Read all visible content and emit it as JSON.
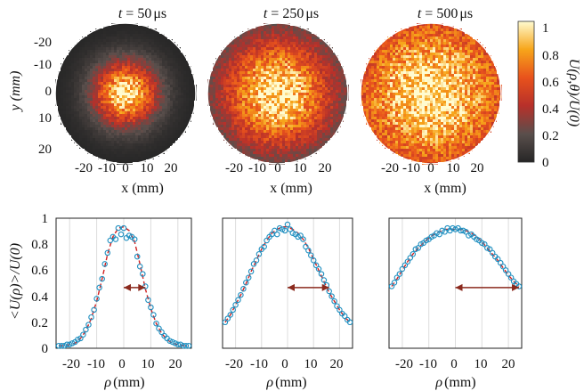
{
  "chart_data": [
    {
      "type": "heatmap",
      "title_prefix": "t",
      "title_value": "= 50",
      "title_unit": "μs",
      "xlabel": "x (mm)",
      "ylabel": "y (mm)",
      "xticks": [
        "-20",
        "-10",
        "0",
        "10",
        "20"
      ],
      "yticks": [
        "-20",
        "-10",
        "0",
        "10",
        "20"
      ],
      "xlim": [
        -25,
        25
      ],
      "ylim": [
        -25,
        25
      ],
      "aperture_radius_mm": 25,
      "beam_width_mm": 8,
      "colormap": "hot"
    },
    {
      "type": "heatmap",
      "title_prefix": "t",
      "title_value": "= 250",
      "title_unit": "μs",
      "xlabel": "x (mm)",
      "xticks": [
        "-20",
        "-10",
        "0",
        "10",
        "20"
      ],
      "xlim": [
        -25,
        25
      ],
      "ylim": [
        -25,
        25
      ],
      "aperture_radius_mm": 25,
      "beam_width_mm": 15,
      "colormap": "hot"
    },
    {
      "type": "heatmap",
      "title_prefix": "t",
      "title_value": "= 500",
      "title_unit": "μs",
      "xlabel": "x (mm)",
      "xticks": [
        "-20",
        "-10",
        "0",
        "10",
        "20"
      ],
      "xlim": [
        -25,
        25
      ],
      "ylim": [
        -25,
        25
      ],
      "aperture_radius_mm": 25,
      "beam_width_mm": 24,
      "colormap": "hot",
      "colorbar": {
        "label": "U(ρ,θ)/U(0)",
        "range": [
          0,
          1.05
        ],
        "ticks": [
          "0",
          "0.2",
          "0.4",
          "0.6",
          "0.8",
          "1"
        ]
      }
    },
    {
      "type": "scatter",
      "xlabel_symbol": "ρ",
      "xlabel_unit": "(mm)",
      "ylabel": "<U(ρ)>/U(0)",
      "xticks": [
        "-20",
        "-10",
        "0",
        "10",
        "20"
      ],
      "yticks": [
        "0",
        "0.2",
        "0.4",
        "0.6",
        "0.8",
        "1"
      ],
      "xlim": [
        -25,
        25
      ],
      "ylim": [
        0,
        1.05
      ],
      "grid": "vertical",
      "series": [
        {
          "kind": "markers",
          "x": [
            -24,
            -23,
            -22,
            -21,
            -20,
            -19,
            -18,
            -17,
            -16,
            -15,
            -14,
            -13,
            -12,
            -11,
            -10,
            -9,
            -8,
            -7,
            -6,
            -5,
            -4,
            -3,
            -2,
            -1,
            0,
            1,
            2,
            3,
            4,
            5,
            6,
            7,
            8,
            9,
            10,
            11,
            12,
            13,
            14,
            15,
            16,
            17,
            18,
            19,
            20,
            21,
            22,
            23,
            24
          ],
          "y": [
            0.02,
            0.02,
            0.02,
            0.03,
            0.03,
            0.04,
            0.05,
            0.07,
            0.08,
            0.11,
            0.15,
            0.19,
            0.25,
            0.31,
            0.4,
            0.49,
            0.56,
            0.68,
            0.77,
            0.87,
            0.9,
            0.88,
            0.97,
            0.92,
            0.97,
            0.89,
            0.91,
            0.9,
            0.88,
            0.74,
            0.66,
            0.6,
            0.5,
            0.39,
            0.33,
            0.27,
            0.2,
            0.16,
            0.13,
            0.1,
            0.08,
            0.06,
            0.05,
            0.04,
            0.03,
            0.03,
            0.02,
            0.02,
            0.02
          ]
        },
        {
          "kind": "fit",
          "x": [
            -24,
            -22,
            -20,
            -18,
            -16,
            -14,
            -12,
            -10,
            -8,
            -6,
            -4,
            -2,
            0,
            2,
            4,
            6,
            8,
            10,
            12,
            14,
            16,
            18,
            20,
            22,
            24
          ],
          "y": [
            0.02,
            0.02,
            0.03,
            0.04,
            0.08,
            0.14,
            0.24,
            0.38,
            0.56,
            0.76,
            0.9,
            0.97,
            0.98,
            0.95,
            0.86,
            0.68,
            0.48,
            0.32,
            0.2,
            0.12,
            0.07,
            0.04,
            0.03,
            0.02,
            0.02
          ]
        }
      ],
      "arrow": {
        "from": [
          0,
          0.49
        ],
        "to": [
          8,
          0.49
        ]
      }
    },
    {
      "type": "scatter",
      "xlabel_symbol": "ρ",
      "xlabel_unit": "(mm)",
      "xticks": [
        "-20",
        "-10",
        "0",
        "10",
        "20"
      ],
      "xlim": [
        -25,
        25
      ],
      "ylim": [
        0,
        1.05
      ],
      "grid": "vertical",
      "series": [
        {
          "kind": "markers",
          "x": [
            -24,
            -23,
            -22,
            -21,
            -20,
            -19,
            -18,
            -17,
            -16,
            -15,
            -14,
            -13,
            -12,
            -11,
            -10,
            -9,
            -8,
            -7,
            -6,
            -5,
            -4,
            -3,
            -2,
            -1,
            0,
            1,
            2,
            3,
            4,
            5,
            6,
            7,
            8,
            9,
            10,
            11,
            12,
            13,
            14,
            15,
            16,
            17,
            18,
            19,
            20,
            21,
            22,
            23,
            24
          ],
          "y": [
            0.21,
            0.24,
            0.27,
            0.31,
            0.35,
            0.39,
            0.43,
            0.48,
            0.53,
            0.57,
            0.62,
            0.68,
            0.71,
            0.76,
            0.8,
            0.82,
            0.87,
            0.9,
            0.92,
            0.95,
            0.92,
            0.97,
            0.96,
            0.95,
            1.0,
            0.96,
            0.93,
            0.92,
            0.9,
            0.91,
            0.88,
            0.82,
            0.79,
            0.75,
            0.71,
            0.67,
            0.64,
            0.6,
            0.55,
            0.51,
            0.46,
            0.42,
            0.38,
            0.34,
            0.31,
            0.28,
            0.26,
            0.23,
            0.21
          ]
        },
        {
          "kind": "fit",
          "x": [
            -24,
            -22,
            -20,
            -18,
            -16,
            -14,
            -12,
            -10,
            -8,
            -6,
            -4,
            -2,
            0,
            2,
            4,
            6,
            8,
            10,
            12,
            14,
            16,
            18,
            20,
            22,
            24
          ],
          "y": [
            0.21,
            0.27,
            0.35,
            0.43,
            0.52,
            0.62,
            0.71,
            0.8,
            0.87,
            0.93,
            0.96,
            0.98,
            0.98,
            0.96,
            0.93,
            0.88,
            0.81,
            0.72,
            0.63,
            0.54,
            0.45,
            0.38,
            0.31,
            0.25,
            0.21
          ]
        }
      ],
      "arrow": {
        "from": [
          0,
          0.49
        ],
        "to": [
          16,
          0.49
        ]
      }
    },
    {
      "type": "scatter",
      "xlabel_symbol": "ρ",
      "xlabel_unit": "(mm)",
      "xticks": [
        "-20",
        "-10",
        "0",
        "10",
        "20"
      ],
      "xlim": [
        -25,
        25
      ],
      "ylim": [
        0,
        1.05
      ],
      "grid": "vertical",
      "series": [
        {
          "kind": "markers",
          "x": [
            -24,
            -23,
            -22,
            -21,
            -20,
            -19,
            -18,
            -17,
            -16,
            -15,
            -14,
            -13,
            -12,
            -11,
            -10,
            -9,
            -8,
            -7,
            -6,
            -5,
            -4,
            -3,
            -2,
            -1,
            0,
            1,
            2,
            3,
            4,
            5,
            6,
            7,
            8,
            9,
            10,
            11,
            12,
            13,
            14,
            15,
            16,
            17,
            18,
            19,
            20,
            21,
            22,
            23,
            24
          ],
          "y": [
            0.5,
            0.53,
            0.57,
            0.6,
            0.64,
            0.67,
            0.7,
            0.73,
            0.76,
            0.8,
            0.81,
            0.84,
            0.85,
            0.87,
            0.88,
            0.9,
            0.91,
            0.93,
            0.92,
            0.95,
            0.94,
            0.97,
            0.95,
            0.97,
            0.96,
            0.97,
            0.95,
            0.95,
            0.94,
            0.91,
            0.92,
            0.9,
            0.88,
            0.87,
            0.85,
            0.84,
            0.81,
            0.8,
            0.77,
            0.74,
            0.72,
            0.69,
            0.66,
            0.63,
            0.6,
            0.57,
            0.54,
            0.52,
            0.5
          ]
        },
        {
          "kind": "fit",
          "x": [
            -24,
            -22,
            -20,
            -18,
            -16,
            -14,
            -12,
            -10,
            -8,
            -6,
            -4,
            -2,
            0,
            2,
            4,
            6,
            8,
            10,
            12,
            14,
            16,
            18,
            20,
            22,
            24
          ],
          "y": [
            0.5,
            0.56,
            0.63,
            0.7,
            0.76,
            0.81,
            0.85,
            0.89,
            0.92,
            0.94,
            0.96,
            0.96,
            0.96,
            0.96,
            0.95,
            0.93,
            0.9,
            0.86,
            0.81,
            0.76,
            0.71,
            0.65,
            0.59,
            0.54,
            0.5
          ]
        }
      ],
      "arrow": {
        "from": [
          0,
          0.49
        ],
        "to": [
          24,
          0.49
        ]
      }
    }
  ]
}
